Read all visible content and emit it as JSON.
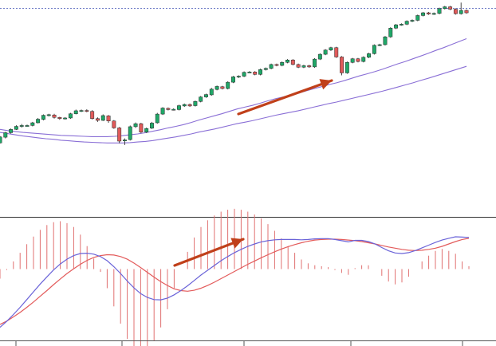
{
  "chart_data": [
    {
      "type": "candlestick",
      "title": "",
      "xlabel": "",
      "ylabel": "",
      "grid": false,
      "legend": "none",
      "colors": {
        "up": "#1fa868",
        "down": "#e05a5a",
        "wick": "#333333",
        "ref_line": "#3f51b5"
      },
      "series": [
        {
          "name": "",
          "type": "line",
          "color": "#8a6fd6",
          "values": [
            50.0,
            49.6,
            49.3,
            49.0,
            48.8,
            48.6,
            48.4,
            48.2,
            48.0,
            47.9,
            47.8,
            47.7,
            47.6,
            47.6,
            47.6,
            47.7,
            47.9,
            48.2,
            48.5,
            48.9,
            49.4,
            49.9,
            50.5,
            51.0,
            51.6,
            52.3,
            53.1,
            53.8,
            54.5,
            55.2,
            56.0,
            56.8,
            57.4,
            58.0,
            58.7,
            59.5,
            60.2,
            60.8,
            61.4,
            62.0,
            62.8,
            63.5,
            64.2,
            64.9,
            65.5,
            66.2,
            67.0,
            67.8,
            68.5,
            69.2,
            70.0,
            70.9,
            71.8,
            72.6,
            73.5,
            74.4,
            75.3,
            76.3,
            77.2,
            78.2,
            79.2,
            80.2
          ]
        },
        {
          "name": "",
          "type": "line",
          "color": "#8a6fd6",
          "values": [
            49.0,
            48.6,
            48.2,
            47.8,
            47.5,
            47.2,
            46.9,
            46.7,
            46.4,
            46.2,
            46.0,
            45.8,
            45.7,
            45.6,
            45.5,
            45.5,
            45.5,
            45.6,
            45.8,
            46.0,
            46.3,
            46.7,
            47.1,
            47.5,
            48.0,
            48.5,
            49.1,
            49.6,
            50.1,
            50.7,
            51.3,
            51.9,
            52.4,
            52.9,
            53.5,
            54.1,
            54.7,
            55.2,
            55.7,
            56.2,
            56.8,
            57.4,
            58.0,
            58.6,
            59.1,
            59.7,
            60.3,
            60.9,
            61.5,
            62.1,
            62.7,
            63.4,
            64.1,
            64.8,
            65.5,
            66.3,
            67.0,
            67.8,
            68.6,
            69.4,
            70.2,
            71.0
          ]
        }
      ],
      "candles": [
        [
          45.5,
          47.5,
          45.3,
          47.8
        ],
        [
          47.4,
          48.9,
          47.0,
          49.2
        ],
        [
          48.9,
          50.0,
          48.6,
          50.3
        ],
        [
          50.0,
          51.0,
          49.8,
          51.4
        ],
        [
          51.0,
          51.3,
          50.6,
          51.8
        ],
        [
          51.2,
          51.3,
          51.0,
          51.6
        ],
        [
          51.3,
          52.2,
          51.0,
          52.5
        ],
        [
          52.2,
          53.4,
          52.0,
          53.8
        ],
        [
          53.3,
          54.7,
          53.0,
          55.0
        ],
        [
          54.6,
          54.9,
          54.3,
          55.2
        ],
        [
          54.8,
          54.0,
          53.6,
          55.2
        ],
        [
          54.0,
          53.6,
          53.2,
          54.2
        ],
        [
          53.6,
          53.8,
          53.3,
          54.1
        ],
        [
          53.8,
          55.2,
          53.5,
          55.5
        ],
        [
          55.2,
          56.2,
          55.0,
          56.6
        ],
        [
          56.2,
          56.3,
          55.8,
          56.6
        ],
        [
          56.3,
          56.0,
          55.7,
          56.7
        ],
        [
          56.0,
          53.6,
          53.3,
          56.4
        ],
        [
          53.6,
          53.0,
          52.5,
          54.0
        ],
        [
          53.0,
          54.6,
          52.8,
          55.0
        ],
        [
          54.5,
          52.8,
          52.2,
          54.8
        ],
        [
          52.8,
          50.5,
          50.2,
          53.1
        ],
        [
          50.5,
          46.1,
          45.4,
          50.8
        ],
        [
          46.2,
          46.5,
          44.8,
          47.0
        ],
        [
          46.6,
          50.9,
          46.3,
          51.3
        ],
        [
          50.9,
          51.9,
          50.5,
          52.3
        ],
        [
          51.9,
          49.1,
          48.7,
          52.2
        ],
        [
          49.1,
          50.3,
          48.8,
          50.6
        ],
        [
          50.4,
          52.1,
          50.1,
          52.5
        ],
        [
          52.2,
          55.1,
          51.9,
          55.5
        ],
        [
          55.1,
          57.1,
          54.8,
          57.4
        ],
        [
          57.0,
          56.6,
          56.3,
          57.3
        ],
        [
          56.6,
          56.7,
          56.3,
          57.0
        ],
        [
          56.6,
          57.9,
          56.3,
          58.2
        ],
        [
          57.8,
          58.3,
          57.5,
          58.6
        ],
        [
          58.3,
          57.8,
          57.5,
          58.6
        ],
        [
          57.9,
          59.3,
          57.6,
          59.6
        ],
        [
          59.3,
          60.8,
          59.0,
          61.1
        ],
        [
          60.8,
          61.6,
          60.5,
          61.9
        ],
        [
          61.5,
          63.4,
          61.2,
          63.8
        ],
        [
          63.3,
          64.3,
          63.0,
          64.6
        ],
        [
          64.2,
          63.6,
          63.3,
          64.5
        ],
        [
          63.6,
          65.7,
          63.3,
          66.0
        ],
        [
          65.7,
          67.5,
          65.4,
          67.8
        ],
        [
          67.4,
          67.7,
          67.1,
          68.0
        ],
        [
          67.7,
          69.0,
          67.4,
          69.3
        ],
        [
          69.0,
          69.1,
          68.8,
          69.4
        ],
        [
          69.1,
          68.3,
          68.0,
          69.4
        ],
        [
          68.3,
          69.9,
          68.0,
          70.2
        ],
        [
          69.9,
          70.3,
          69.6,
          70.6
        ],
        [
          70.3,
          71.6,
          70.0,
          71.9
        ],
        [
          71.6,
          71.3,
          71.0,
          71.9
        ],
        [
          71.3,
          72.3,
          71.0,
          72.6
        ],
        [
          72.3,
          73.1,
          72.0,
          73.4
        ],
        [
          73.1,
          71.6,
          71.3,
          73.4
        ],
        [
          71.6,
          70.7,
          70.4,
          71.9
        ],
        [
          70.7,
          71.2,
          70.4,
          71.5
        ],
        [
          71.2,
          70.8,
          70.5,
          71.5
        ],
        [
          70.8,
          73.4,
          70.5,
          73.7
        ],
        [
          73.4,
          75.0,
          73.1,
          75.3
        ],
        [
          75.0,
          76.4,
          74.7,
          76.7
        ],
        [
          76.4,
          77.2,
          76.1,
          77.5
        ],
        [
          77.2,
          74.1,
          73.8,
          77.5
        ],
        [
          74.1,
          68.8,
          68.0,
          74.4
        ],
        [
          68.8,
          72.3,
          68.5,
          72.6
        ],
        [
          72.3,
          73.5,
          72.0,
          73.8
        ],
        [
          73.5,
          72.6,
          72.3,
          73.8
        ],
        [
          72.6,
          74.0,
          72.3,
          74.3
        ],
        [
          74.0,
          75.2,
          73.7,
          75.5
        ],
        [
          75.2,
          78.0,
          74.9,
          78.3
        ],
        [
          78.0,
          78.2,
          77.7,
          78.5
        ],
        [
          78.2,
          80.8,
          77.9,
          81.1
        ],
        [
          80.8,
          83.7,
          80.5,
          84.0
        ],
        [
          83.7,
          84.8,
          83.4,
          85.1
        ],
        [
          84.8,
          85.0,
          84.5,
          85.3
        ],
        [
          85.0,
          86.0,
          84.7,
          86.3
        ],
        [
          86.0,
          86.3,
          85.7,
          86.6
        ],
        [
          86.3,
          87.9,
          86.0,
          88.2
        ],
        [
          87.9,
          88.8,
          87.6,
          89.1
        ],
        [
          88.8,
          88.4,
          88.1,
          89.1
        ],
        [
          88.4,
          88.6,
          88.1,
          88.9
        ],
        [
          88.6,
          90.2,
          88.3,
          90.5
        ],
        [
          90.2,
          90.8,
          89.9,
          91.1
        ],
        [
          90.8,
          90.0,
          89.7,
          91.1
        ],
        [
          90.0,
          88.5,
          88.2,
          90.3
        ],
        [
          88.5,
          89.6,
          88.2,
          92.2
        ],
        [
          89.6,
          88.8,
          88.5,
          89.9
        ]
      ],
      "ylim": [
        40,
        92
      ]
    },
    {
      "type": "macd",
      "title": "",
      "xlabel": "",
      "ylabel": "",
      "grid": false,
      "legend": "none",
      "colors": {
        "fast": "#6a63d8",
        "signal": "#e35b5b",
        "hist": "#e07070",
        "axis": "#333333"
      },
      "fast": [
        -1.95,
        -1.75,
        -1.52,
        -1.28,
        -1.02,
        -0.76,
        -0.5,
        -0.26,
        -0.03,
        0.17,
        0.33,
        0.45,
        0.52,
        0.53,
        0.5,
        0.42,
        0.28,
        0.08,
        -0.15,
        -0.4,
        -0.63,
        -0.82,
        -0.95,
        -1.02,
        -1.03,
        -0.97,
        -0.86,
        -0.72,
        -0.56,
        -0.38,
        -0.2,
        -0.04,
        0.12,
        0.28,
        0.42,
        0.55,
        0.66,
        0.76,
        0.84,
        0.91,
        0.95,
        0.98,
        0.99,
        0.99,
        0.99,
        0.98,
        0.99,
        1.01,
        1.02,
        1.02,
        0.99,
        0.95,
        0.91,
        0.96,
        0.96,
        0.92,
        0.84,
        0.72,
        0.61,
        0.54,
        0.52,
        0.55,
        0.62,
        0.71,
        0.8,
        0.89,
        0.97,
        1.03,
        1.08,
        1.07,
        1.06
      ],
      "signal": [
        -1.85,
        -1.74,
        -1.6,
        -1.45,
        -1.28,
        -1.1,
        -0.91,
        -0.72,
        -0.52,
        -0.33,
        -0.15,
        0.01,
        0.16,
        0.29,
        0.39,
        0.45,
        0.48,
        0.47,
        0.42,
        0.33,
        0.2,
        0.05,
        -0.11,
        -0.27,
        -0.42,
        -0.55,
        -0.66,
        -0.72,
        -0.74,
        -0.71,
        -0.64,
        -0.55,
        -0.44,
        -0.32,
        -0.2,
        -0.08,
        0.04,
        0.16,
        0.27,
        0.38,
        0.48,
        0.58,
        0.67,
        0.75,
        0.82,
        0.88,
        0.93,
        0.97,
        0.99,
        1.0,
        1.0,
        0.99,
        0.97,
        0.95,
        0.92,
        0.88,
        0.84,
        0.79,
        0.74,
        0.7,
        0.66,
        0.63,
        0.62,
        0.63,
        0.66,
        0.7,
        0.76,
        0.84,
        0.92,
        0.99,
        1.03
      ],
      "ylim": [
        -2.2,
        1.4
      ]
    }
  ]
}
